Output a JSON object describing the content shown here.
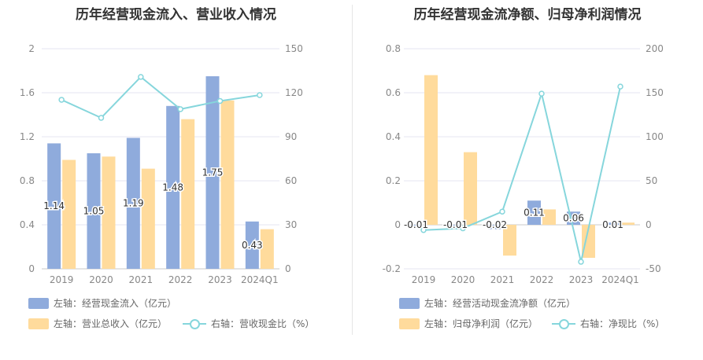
{
  "colors": {
    "bar1": "#8fabdc",
    "bar2": "#ffdb9c",
    "line": "#86d6dc",
    "grid": "#e4e6f2",
    "axis_text": "#888888",
    "label_text": "#333333"
  },
  "chart_data": [
    {
      "type": "bar",
      "title": "历年经营现金流入、营业收入情况",
      "categories": [
        "2019",
        "2020",
        "2021",
        "2022",
        "2023",
        "2024Q1"
      ],
      "y_left": {
        "ticks": [
          "0",
          "0.4",
          "0.8",
          "1.2",
          "1.6",
          "2"
        ],
        "range": [
          0,
          2
        ]
      },
      "y_right": {
        "ticks": [
          "0",
          "30",
          "60",
          "90",
          "120",
          "150"
        ],
        "range": [
          0,
          150
        ]
      },
      "series": [
        {
          "name": "左轴：经营现金流入（亿元）",
          "kind": "bar",
          "axis": "left",
          "values": [
            1.14,
            1.05,
            1.19,
            1.48,
            1.75,
            0.43
          ],
          "labels": [
            "1.14",
            "1.05",
            "1.19",
            "1.48",
            "1.75",
            "0.43"
          ]
        },
        {
          "name": "左轴：营业总收入（亿元）",
          "kind": "bar",
          "axis": "left",
          "values": [
            0.99,
            1.02,
            0.91,
            1.36,
            1.53,
            0.36
          ]
        },
        {
          "name": "右轴：营收现金比（%）",
          "kind": "line",
          "axis": "right",
          "values": [
            115.2,
            102.9,
            130.8,
            108.8,
            114.4,
            118.4
          ]
        }
      ]
    },
    {
      "type": "bar",
      "title": "历年经营现金流净额、归母净利润情况",
      "categories": [
        "2019",
        "2020",
        "2021",
        "2022",
        "2023",
        "2024Q1"
      ],
      "y_left": {
        "ticks": [
          "-0.2",
          "0",
          "0.2",
          "0.4",
          "0.6",
          "0.8"
        ],
        "range": [
          -0.2,
          0.8
        ]
      },
      "y_right": {
        "ticks": [
          "-50",
          "0",
          "50",
          "100",
          "150",
          "200"
        ],
        "range": [
          -50,
          200
        ]
      },
      "series": [
        {
          "name": "左轴：经营活动现金流净额（亿元）",
          "kind": "bar",
          "axis": "left",
          "values": [
            -0.01,
            -0.01,
            -0.02,
            0.11,
            0.06,
            0.01
          ],
          "labels": [
            "-0.01",
            "-0.01",
            "-0.02",
            "0.11",
            "0.06",
            "0.01"
          ]
        },
        {
          "name": "左轴：归母净利润（亿元）",
          "kind": "bar",
          "axis": "left",
          "values": [
            0.68,
            0.33,
            -0.14,
            0.07,
            -0.15,
            0.01
          ]
        },
        {
          "name": "右轴：净现比（%）",
          "kind": "line",
          "axis": "right",
          "values": [
            -6,
            -4,
            15,
            149,
            -42,
            157
          ]
        }
      ]
    }
  ]
}
